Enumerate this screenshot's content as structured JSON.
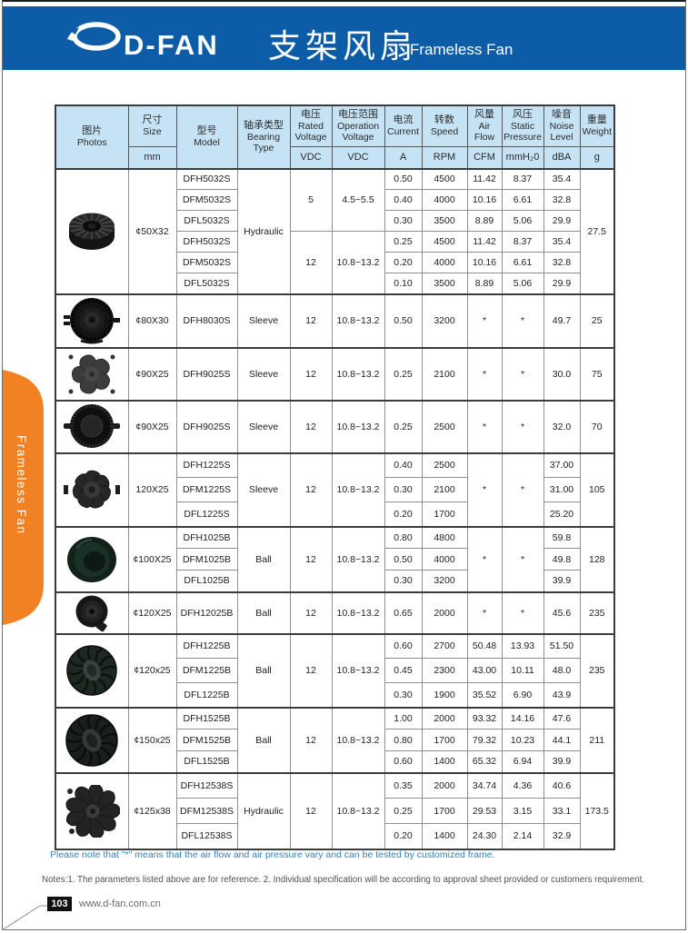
{
  "page": {
    "header": {
      "brand": "D-FAN",
      "title_zh": "支架风扇",
      "title_en": "Frameless Fan",
      "bar_color": "#0c5ca7"
    },
    "side_tab": {
      "label": "Frameless Fan",
      "color": "#f28123"
    },
    "notes": {
      "highlight": "Please note that  \"*\"  means that the air flow and air pressure vary and can be tested by customized frame.",
      "general": "Notes:1. The parameters listed above are for reference.   2. Individual specification will be according to approval sheet provided or customers requirement."
    },
    "footer": {
      "page_number": "103",
      "website": "www.d-fan.com.cn"
    }
  },
  "table": {
    "columns": [
      {
        "key": "photos",
        "zh": "图片",
        "en": "Photos",
        "unit": null
      },
      {
        "key": "size",
        "zh": "尺寸",
        "en": "Size",
        "unit": "mm"
      },
      {
        "key": "model",
        "zh": "型号",
        "en": "Model",
        "unit": null
      },
      {
        "key": "bearing",
        "zh": "轴承类型",
        "en": "Bearing Type",
        "unit": null
      },
      {
        "key": "rated-voltage",
        "zh": "电压",
        "en": "Rated Voltage",
        "unit": "VDC"
      },
      {
        "key": "operation-voltage",
        "zh": "电压范围",
        "en": "Operation Voltage",
        "unit": "VDC"
      },
      {
        "key": "current",
        "zh": "电流",
        "en": "Current",
        "unit": "A"
      },
      {
        "key": "speed",
        "zh": "转数",
        "en": "Speed",
        "unit": "RPM"
      },
      {
        "key": "air-flow",
        "zh": "风量",
        "en": "Air Flow",
        "unit": "CFM"
      },
      {
        "key": "static-pressure",
        "zh": "风压",
        "en": "Static Pressure",
        "unit": "mmH₂0"
      },
      {
        "key": "noise",
        "zh": "噪音",
        "en": "Noise Level",
        "unit": "dBA"
      },
      {
        "key": "weight",
        "zh": "重量",
        "en": "Weight",
        "unit": "g"
      }
    ],
    "groups": [
      {
        "photo": "angled-impeller-fan",
        "size": "¢50X32",
        "bearing": "Hydraulic",
        "weight": "27.5",
        "voltages": [
          {
            "rated": "5",
            "range": "4.5~5.5",
            "rows": 3
          },
          {
            "rated": "12",
            "range": "10.8~13.2",
            "rows": 3
          }
        ],
        "shared_air_flow": null,
        "shared_pressure": null,
        "rows": [
          {
            "model": "DFH5032S",
            "current": "0.50",
            "speed": "4500",
            "air_flow": "11.42",
            "pressure": "8.37",
            "noise": "35.4"
          },
          {
            "model": "DFM5032S",
            "current": "0.40",
            "speed": "4000",
            "air_flow": "10.16",
            "pressure": "6.61",
            "noise": "32.8"
          },
          {
            "model": "DFL5032S",
            "current": "0.30",
            "speed": "3500",
            "air_flow": "8.89",
            "pressure": "5.06",
            "noise": "29.9"
          },
          {
            "model": "DFH5032S",
            "current": "0.25",
            "speed": "4500",
            "air_flow": "11.42",
            "pressure": "8.37",
            "noise": "35.4"
          },
          {
            "model": "DFM5032S",
            "current": "0.20",
            "speed": "4000",
            "air_flow": "10.16",
            "pressure": "6.61",
            "noise": "32.8"
          },
          {
            "model": "DFL5032S",
            "current": "0.10",
            "speed": "3500",
            "air_flow": "8.89",
            "pressure": "5.06",
            "noise": "29.9"
          }
        ]
      },
      {
        "photo": "round-blower-fan",
        "size": "¢80X30",
        "bearing": "Sleeve",
        "weight": "25",
        "voltages": [
          {
            "rated": "12",
            "range": "10.8~13.2",
            "rows": 1
          }
        ],
        "shared_air_flow": null,
        "shared_pressure": null,
        "rows": [
          {
            "model": "DFH8030S",
            "current": "0.50",
            "speed": "3200",
            "air_flow": "*",
            "pressure": "*",
            "noise": "49.7"
          }
        ]
      },
      {
        "photo": "axial-fan-5-blade",
        "size": "¢90X25",
        "bearing": "Sleeve",
        "weight": "75",
        "voltages": [
          {
            "rated": "12",
            "range": "10.8~13.2",
            "rows": 1
          }
        ],
        "shared_air_flow": null,
        "shared_pressure": null,
        "rows": [
          {
            "model": "DFH9025S",
            "current": "0.25",
            "speed": "2100",
            "air_flow": "*",
            "pressure": "*",
            "noise": "30.0"
          }
        ]
      },
      {
        "photo": "serrated-blower-fan",
        "size": "¢90X25",
        "bearing": "Sleeve",
        "weight": "70",
        "voltages": [
          {
            "rated": "12",
            "range": "10.8~13.2",
            "rows": 1
          }
        ],
        "shared_air_flow": null,
        "shared_pressure": null,
        "rows": [
          {
            "model": "DFH9025S",
            "current": "0.25",
            "speed": "2500",
            "air_flow": "*",
            "pressure": "*",
            "noise": "32.0"
          }
        ]
      },
      {
        "photo": "axial-fan-7-blade",
        "size": "120X25",
        "bearing": "Sleeve",
        "weight": "105",
        "voltages": [
          {
            "rated": "12",
            "range": "10.8~13.2",
            "rows": 3
          }
        ],
        "shared_air_flow": "*",
        "shared_pressure": "*",
        "rows": [
          {
            "model": "DFH1225S",
            "current": "0.40",
            "speed": "2500",
            "noise": "37.00"
          },
          {
            "model": "DFM1225S",
            "current": "0.30",
            "speed": "2100",
            "noise": "31.00"
          },
          {
            "model": "DFL1225S",
            "current": "0.20",
            "speed": "1700",
            "noise": "25.20"
          }
        ]
      },
      {
        "photo": "dome-fan",
        "size": "¢100X25",
        "bearing": "Ball",
        "weight": "128",
        "voltages": [
          {
            "rated": "12",
            "range": "10.8~13.2",
            "rows": 3
          }
        ],
        "shared_air_flow": "*",
        "shared_pressure": "*",
        "rows": [
          {
            "model": "DFH1025B",
            "current": "0.80",
            "speed": "4800",
            "noise": "59.8"
          },
          {
            "model": "DFM1025B",
            "current": "0.50",
            "speed": "4000",
            "noise": "49.8"
          },
          {
            "model": "DFL1025B",
            "current": "0.30",
            "speed": "3200",
            "noise": "39.9"
          }
        ]
      },
      {
        "photo": "small-round-fan",
        "size": "¢120X25",
        "bearing": "Ball",
        "weight": "235",
        "voltages": [
          {
            "rated": "12",
            "range": "10.8~13.2",
            "rows": 1
          }
        ],
        "shared_air_flow": null,
        "shared_pressure": null,
        "rows": [
          {
            "model": "DFH12025B",
            "current": "0.65",
            "speed": "2000",
            "air_flow": "*",
            "pressure": "*",
            "noise": "45.6"
          }
        ]
      },
      {
        "photo": "curved-blower-fan",
        "size": "¢120x25",
        "bearing": "Ball",
        "weight": "235",
        "voltages": [
          {
            "rated": "12",
            "range": "10.8~13.2",
            "rows": 3
          }
        ],
        "shared_air_flow": null,
        "shared_pressure": null,
        "rows": [
          {
            "model": "DFH1225B",
            "current": "0.60",
            "speed": "2700",
            "air_flow": "50.48",
            "pressure": "13.93",
            "noise": "51.50"
          },
          {
            "model": "DFM1225B",
            "current": "0.45",
            "speed": "2300",
            "air_flow": "43.00",
            "pressure": "10.11",
            "noise": "48.0"
          },
          {
            "model": "DFL1225B",
            "current": "0.30",
            "speed": "1900",
            "air_flow": "35.52",
            "pressure": "6.90",
            "noise": "43.9"
          }
        ]
      },
      {
        "photo": "curved-blower-fan-large",
        "size": "¢150x25",
        "bearing": "Ball",
        "weight": "211",
        "voltages": [
          {
            "rated": "12",
            "range": "10.8~13.2",
            "rows": 3
          }
        ],
        "shared_air_flow": null,
        "shared_pressure": null,
        "rows": [
          {
            "model": "DFH1525B",
            "current": "1.00",
            "speed": "2000",
            "air_flow": "93.32",
            "pressure": "14.16",
            "noise": "47.6"
          },
          {
            "model": "DFM1525B",
            "current": "0.80",
            "speed": "1700",
            "air_flow": "79.32",
            "pressure": "10.23",
            "noise": "44.1"
          },
          {
            "model": "DFL1525B",
            "current": "0.60",
            "speed": "1400",
            "air_flow": "65.32",
            "pressure": "6.94",
            "noise": "39.9"
          }
        ]
      },
      {
        "photo": "curved-axial-fan",
        "size": "¢125x38",
        "bearing": "Hydraulic",
        "weight": "173.5",
        "voltages": [
          {
            "rated": "12",
            "range": "10.8~13.2",
            "rows": 3
          }
        ],
        "shared_air_flow": null,
        "shared_pressure": null,
        "rows": [
          {
            "model": "DFH12538S",
            "current": "0.35",
            "speed": "2000",
            "air_flow": "34.74",
            "pressure": "4.36",
            "noise": "40.6"
          },
          {
            "model": "DFM12538S",
            "current": "0.25",
            "speed": "1700",
            "air_flow": "29.53",
            "pressure": "3.15",
            "noise": "33.1"
          },
          {
            "model": "DFL12538S",
            "current": "0.20",
            "speed": "1400",
            "air_flow": "24.30",
            "pressure": "2.14",
            "noise": "32.9"
          }
        ]
      }
    ]
  }
}
